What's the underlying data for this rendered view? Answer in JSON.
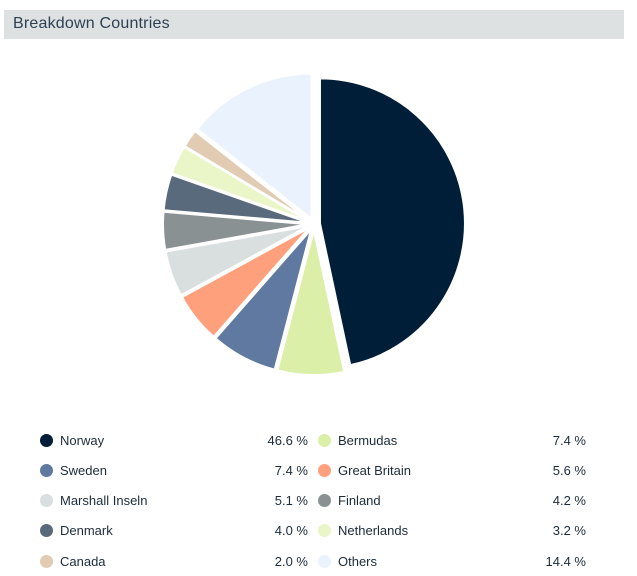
{
  "header": {
    "title": "Breakdown Countries"
  },
  "chart_data": {
    "type": "pie",
    "title": "Breakdown Countries",
    "legend_position": "bottom",
    "slices": [
      {
        "label": "Norway",
        "value": 46.6,
        "value_label": "46.6 %",
        "color": "#001e38"
      },
      {
        "label": "Bermudas",
        "value": 7.4,
        "value_label": "7.4 %",
        "color": "#dcefa8"
      },
      {
        "label": "Sweden",
        "value": 7.4,
        "value_label": "7.4 %",
        "color": "#5f79a0"
      },
      {
        "label": "Great Britain",
        "value": 5.6,
        "value_label": "5.6 %",
        "color": "#ffa07c"
      },
      {
        "label": "Marshall Inseln",
        "value": 5.1,
        "value_label": "5.1 %",
        "color": "#d9dfdf"
      },
      {
        "label": "Finland",
        "value": 4.2,
        "value_label": "4.2 %",
        "color": "#8a9192"
      },
      {
        "label": "Denmark",
        "value": 4.0,
        "value_label": "4.0 %",
        "color": "#596a7d"
      },
      {
        "label": "Netherlands",
        "value": 3.2,
        "value_label": "3.2 %",
        "color": "#eaf5c8"
      },
      {
        "label": "Canada",
        "value": 2.0,
        "value_label": "2.0 %",
        "color": "#e1cbb3"
      },
      {
        "label": "Others",
        "value": 14.4,
        "value_label": "14.4 %",
        "color": "#eaf2fd"
      }
    ]
  }
}
